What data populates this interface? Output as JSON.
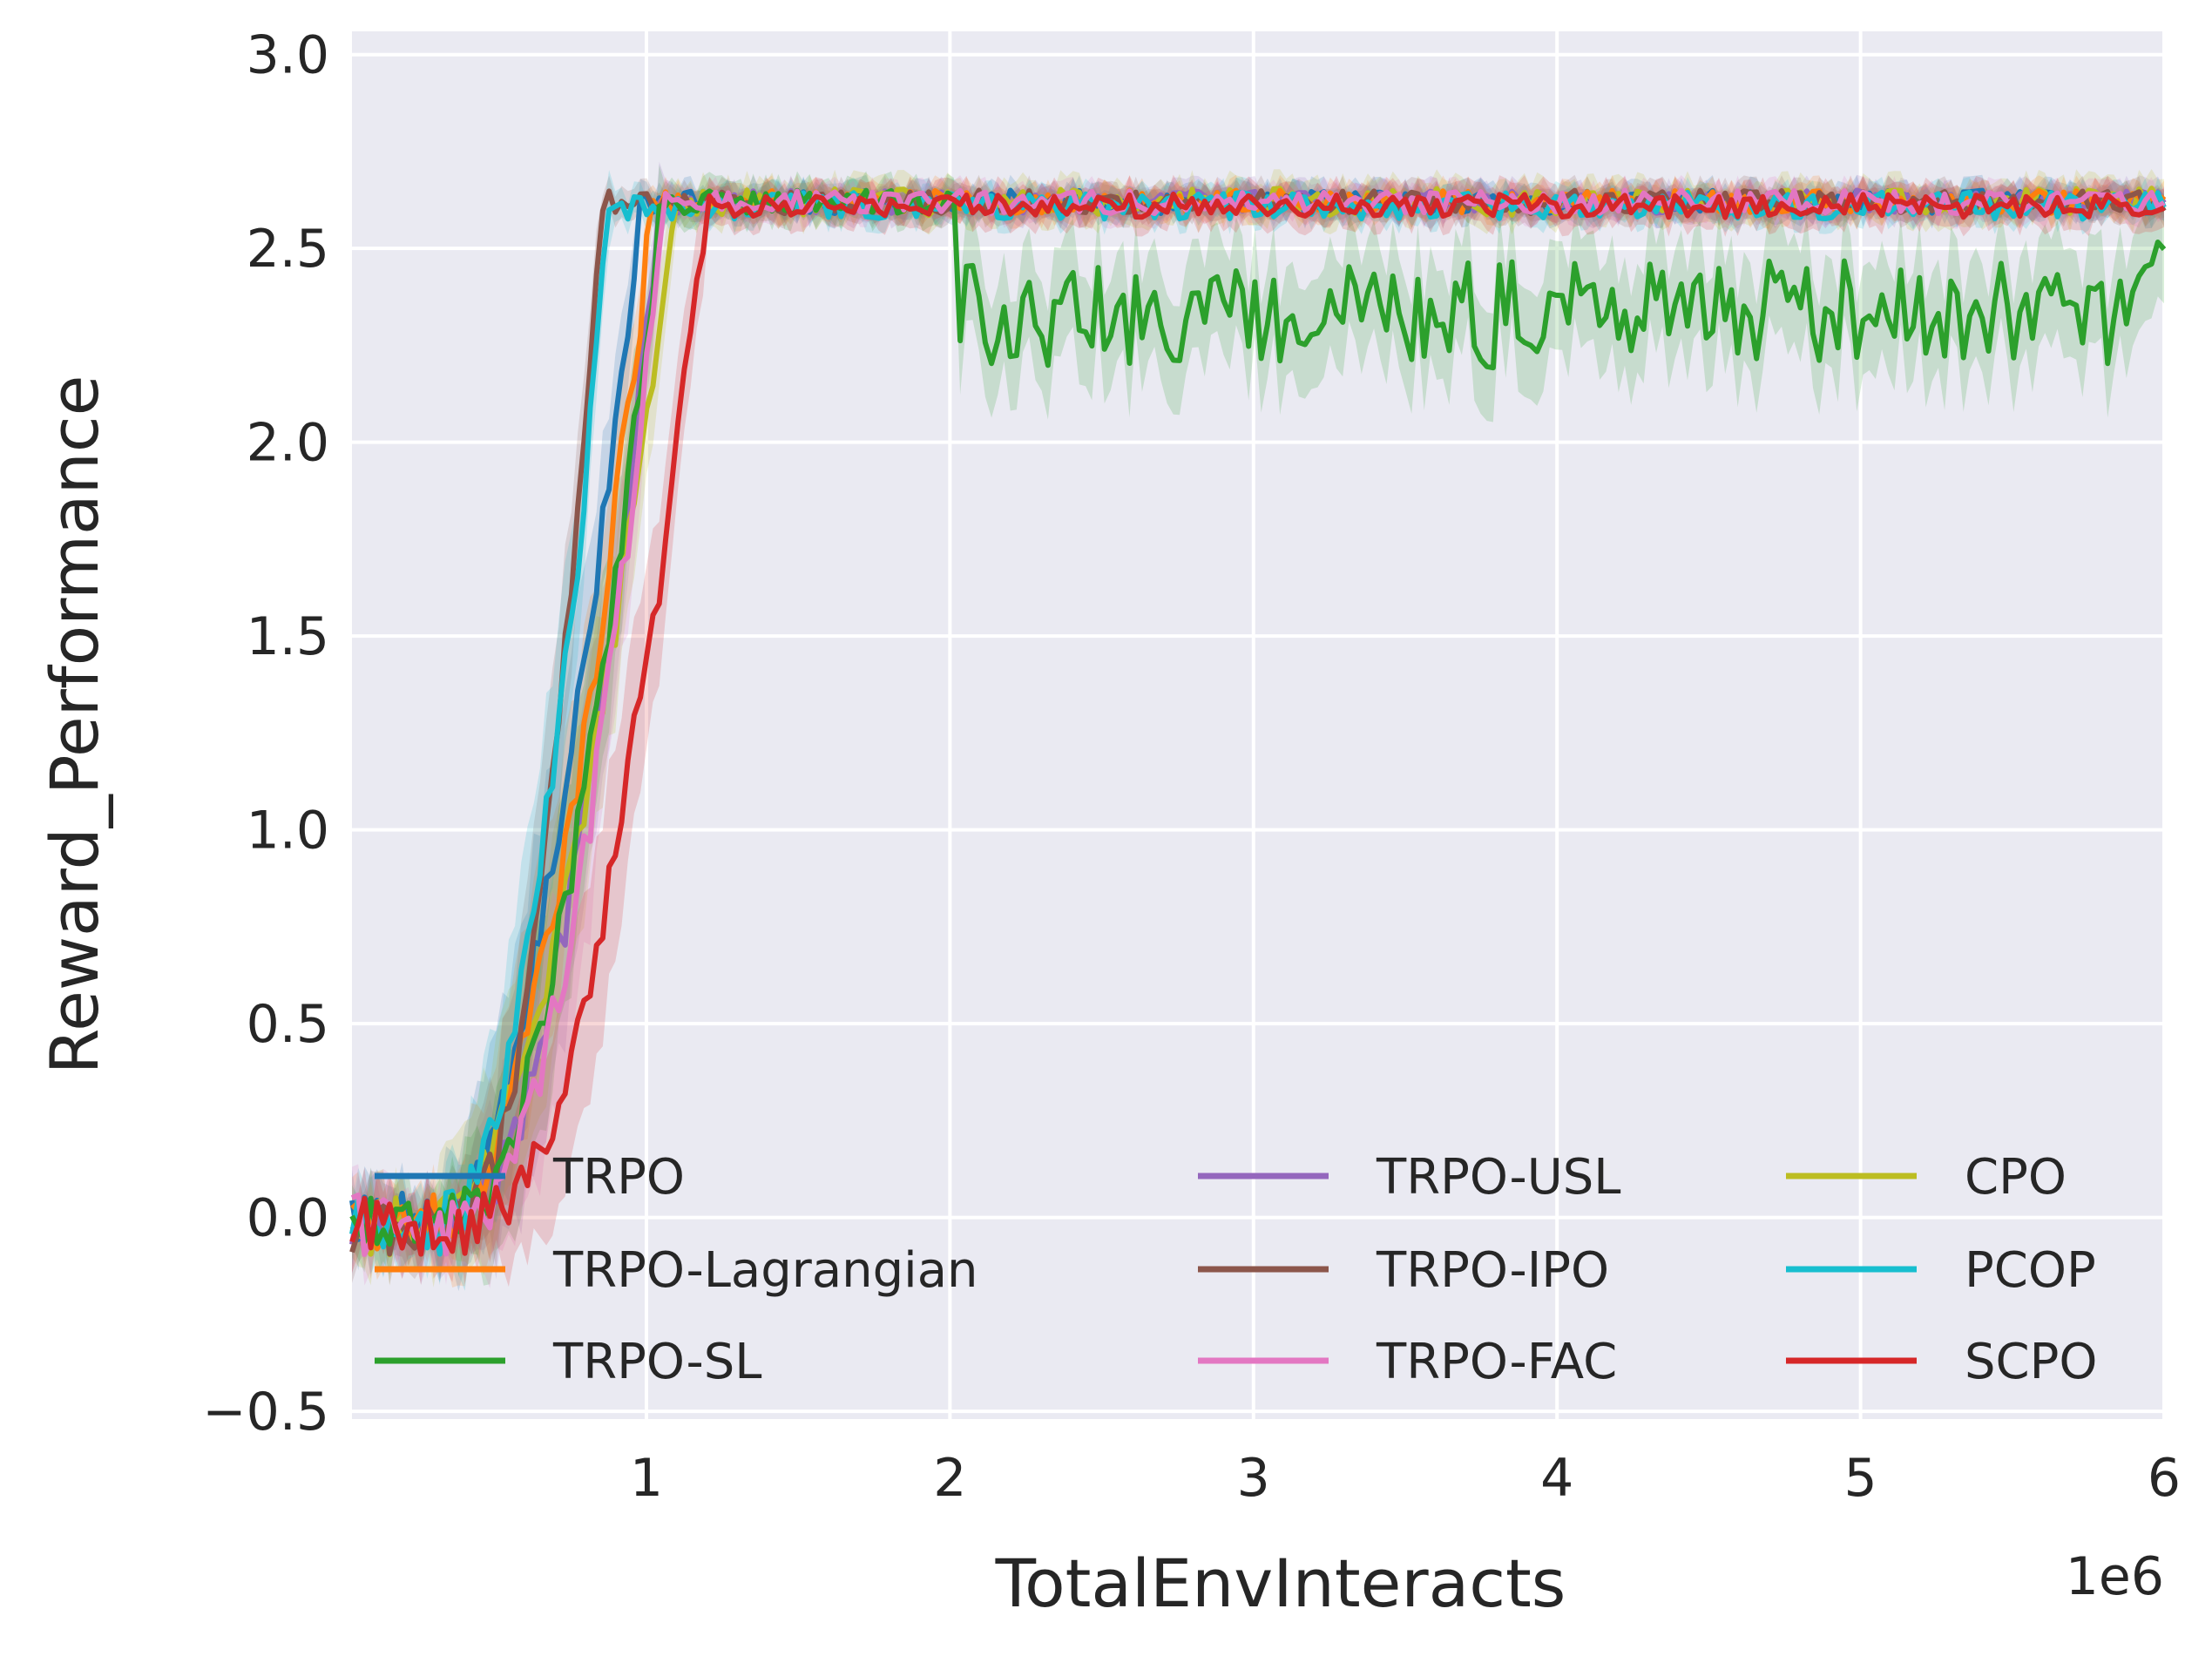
{
  "chart_data": {
    "type": "line",
    "title": "",
    "xlabel": "TotalEnvInteracts",
    "ylabel": "Reward_Performance",
    "x_offset_label": "1e6",
    "xlim": [
      0.03,
      6.0
    ],
    "ylim": [
      -0.52,
      3.06
    ],
    "xticks": [
      1,
      2,
      3,
      4,
      5,
      6
    ],
    "xtick_labels": [
      "1",
      "2",
      "3",
      "4",
      "5",
      "6"
    ],
    "yticks": [
      -0.5,
      0.0,
      0.5,
      1.0,
      1.5,
      2.0,
      2.5,
      3.0
    ],
    "ytick_labels": [
      "−0.5",
      "0.0",
      "0.5",
      "1.0",
      "1.5",
      "2.0",
      "2.5",
      "3.0"
    ],
    "grid": true,
    "legend_position": "lower-center, 3 columns",
    "series": [
      {
        "name": "TRPO",
        "color": "#1f77b4",
        "ramp": [
          0.3,
          0.98
        ],
        "plateau": 2.62,
        "noise": 0.03,
        "band": 0.04
      },
      {
        "name": "TRPO-USL",
        "color": "#9467bd",
        "ramp": [
          0.38,
          1.05
        ],
        "plateau": 2.62,
        "noise": 0.03,
        "band": 0.04
      },
      {
        "name": "CPO",
        "color": "#bcbd22",
        "ramp": [
          0.28,
          1.1
        ],
        "plateau": 2.62,
        "noise": 0.035,
        "band": 0.05
      },
      {
        "name": "TRPO-Lagrangian",
        "color": "#ff7f0e",
        "ramp": [
          0.32,
          1.02
        ],
        "plateau": 2.62,
        "noise": 0.03,
        "band": 0.04
      },
      {
        "name": "TRPO-IPO",
        "color": "#8c564b",
        "ramp": [
          0.4,
          0.85
        ],
        "plateau": 2.62,
        "noise": 0.03,
        "band": 0.04
      },
      {
        "name": "PCOP",
        "color": "#17becf",
        "ramp": [
          0.34,
          0.88
        ],
        "plateau": 2.61,
        "noise": 0.035,
        "band": 0.04
      },
      {
        "name": "TRPO-SL",
        "color": "#2ca02c",
        "ramp": [
          0.36,
          1.05
        ],
        "plateau": 2.62,
        "noise": 0.03,
        "band": 0.05,
        "drop": {
          "start": 2.02,
          "level": 2.33,
          "noise": 0.14,
          "band": 0.14
        }
      },
      {
        "name": "TRPO-FAC",
        "color": "#e377c2",
        "ramp": [
          0.42,
          1.06
        ],
        "plateau": 2.62,
        "noise": 0.03,
        "band": 0.04
      },
      {
        "name": "SCPO",
        "color": "#d62728",
        "ramp": [
          0.46,
          1.2
        ],
        "plateau": 2.61,
        "noise": 0.03,
        "band": 0.05
      }
    ]
  },
  "legend": {
    "columns": [
      [
        "TRPO",
        "TRPO-Lagrangian",
        "TRPO-SL"
      ],
      [
        "TRPO-USL",
        "TRPO-IPO",
        "TRPO-FAC"
      ],
      [
        "CPO",
        "PCOP",
        "SCPO"
      ]
    ],
    "colors": {
      "TRPO": "#1f77b4",
      "TRPO-Lagrangian": "#ff7f0e",
      "TRPO-SL": "#2ca02c",
      "TRPO-USL": "#9467bd",
      "TRPO-IPO": "#8c564b",
      "TRPO-FAC": "#e377c2",
      "CPO": "#bcbd22",
      "PCOP": "#17becf",
      "SCPO": "#d62728"
    }
  },
  "style": {
    "plot_bg": "#eaeaf2",
    "grid_color": "#ffffff"
  }
}
